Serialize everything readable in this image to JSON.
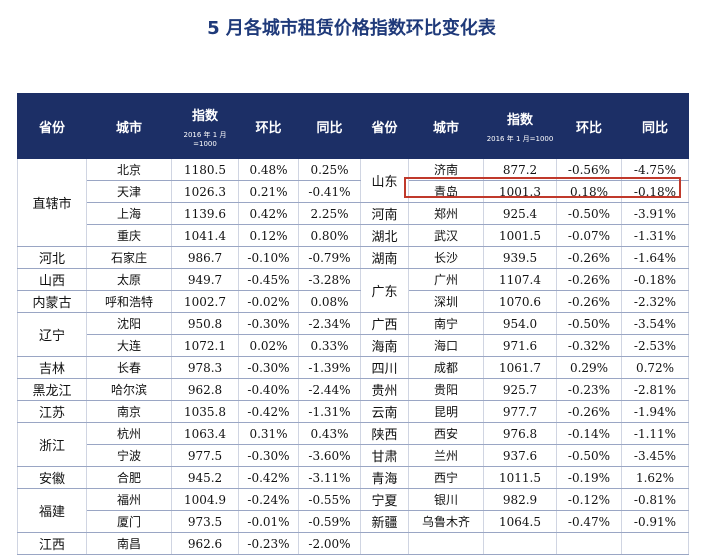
{
  "title": "5 月各城市租赁价格指数环比变化表",
  "headers": {
    "province": "省份",
    "city": "城市",
    "index": "指数",
    "index_note": "2016 年 1 月=1000",
    "mom": "环比",
    "yoy": "同比"
  },
  "left_rows": [
    [
      "北京",
      "1180.5",
      "0.48%",
      "0.25%"
    ],
    [
      "天津",
      "1026.3",
      "0.21%",
      "-0.41%"
    ],
    [
      "上海",
      "1139.6",
      "0.42%",
      "2.25%"
    ],
    [
      "重庆",
      "1041.4",
      "0.12%",
      "0.80%"
    ],
    [
      "石家庄",
      "986.7",
      "-0.10%",
      "-0.79%"
    ],
    [
      "太原",
      "949.7",
      "-0.45%",
      "-3.28%"
    ],
    [
      "呼和浩特",
      "1002.7",
      "-0.02%",
      "0.08%"
    ],
    [
      "沈阳",
      "950.8",
      "-0.30%",
      "-2.34%"
    ],
    [
      "大连",
      "1072.1",
      "0.02%",
      "0.33%"
    ],
    [
      "长春",
      "978.3",
      "-0.30%",
      "-1.39%"
    ],
    [
      "哈尔滨",
      "962.8",
      "-0.40%",
      "-2.44%"
    ],
    [
      "南京",
      "1035.8",
      "-0.42%",
      "-1.31%"
    ],
    [
      "杭州",
      "1063.4",
      "0.31%",
      "0.43%"
    ],
    [
      "宁波",
      "977.5",
      "-0.30%",
      "-3.60%"
    ],
    [
      "合肥",
      "945.2",
      "-0.42%",
      "-3.11%"
    ],
    [
      "福州",
      "1004.9",
      "-0.24%",
      "-0.55%"
    ],
    [
      "厦门",
      "973.5",
      "-0.01%",
      "-0.59%"
    ],
    [
      "南昌",
      "962.6",
      "-0.23%",
      "-2.00%"
    ]
  ],
  "left_provinces": [
    {
      "name": "直辖市",
      "span": 4
    },
    {
      "name": "河北",
      "span": 1
    },
    {
      "name": "山西",
      "span": 1
    },
    {
      "name": "内蒙古",
      "span": 1
    },
    {
      "name": "辽宁",
      "span": 2
    },
    {
      "name": "吉林",
      "span": 1
    },
    {
      "name": "黑龙江",
      "span": 1
    },
    {
      "name": "江苏",
      "span": 1
    },
    {
      "name": "浙江",
      "span": 2
    },
    {
      "name": "安徽",
      "span": 1
    },
    {
      "name": "福建",
      "span": 2
    },
    {
      "name": "江西",
      "span": 1
    }
  ],
  "right_rows": [
    [
      "济南",
      "877.2",
      "-0.56%",
      "-4.75%"
    ],
    [
      "青岛",
      "1001.3",
      "0.18%",
      "-0.18%"
    ],
    [
      "郑州",
      "925.4",
      "-0.50%",
      "-3.91%"
    ],
    [
      "武汉",
      "1001.5",
      "-0.07%",
      "-1.31%"
    ],
    [
      "长沙",
      "939.5",
      "-0.26%",
      "-1.64%"
    ],
    [
      "广州",
      "1107.4",
      "-0.26%",
      "-0.18%"
    ],
    [
      "深圳",
      "1070.6",
      "-0.26%",
      "-2.32%"
    ],
    [
      "南宁",
      "954.0",
      "-0.50%",
      "-3.54%"
    ],
    [
      "海口",
      "971.6",
      "-0.32%",
      "-2.53%"
    ],
    [
      "成都",
      "1061.7",
      "0.29%",
      "0.72%"
    ],
    [
      "贵阳",
      "925.7",
      "-0.23%",
      "-2.81%"
    ],
    [
      "昆明",
      "977.7",
      "-0.26%",
      "-1.94%"
    ],
    [
      "西安",
      "976.8",
      "-0.14%",
      "-1.11%"
    ],
    [
      "兰州",
      "937.6",
      "-0.50%",
      "-3.45%"
    ],
    [
      "西宁",
      "1011.5",
      "-0.19%",
      "1.62%"
    ],
    [
      "银川",
      "982.9",
      "-0.12%",
      "-0.81%"
    ],
    [
      "乌鲁木齐",
      "1064.5",
      "-0.47%",
      "-0.91%"
    ],
    [
      "",
      "",
      "",
      ""
    ]
  ],
  "right_provinces": [
    {
      "name": "山东",
      "span": 2
    },
    {
      "name": "河南",
      "span": 1
    },
    {
      "name": "湖北",
      "span": 1
    },
    {
      "name": "湖南",
      "span": 1
    },
    {
      "name": "广东",
      "span": 2
    },
    {
      "name": "广西",
      "span": 1
    },
    {
      "name": "海南",
      "span": 1
    },
    {
      "name": "四川",
      "span": 1
    },
    {
      "name": "贵州",
      "span": 1
    },
    {
      "name": "云南",
      "span": 1
    },
    {
      "name": "陕西",
      "span": 1
    },
    {
      "name": "甘肃",
      "span": 1
    },
    {
      "name": "青海",
      "span": 1
    },
    {
      "name": "宁夏",
      "span": 1
    },
    {
      "name": "新疆",
      "span": 1
    },
    {
      "name": "",
      "span": 1
    }
  ],
  "highlighted_city": "青岛",
  "colors": {
    "header_bg": "#1c2f66",
    "title": "#1f3a7a",
    "highlight": "#c0392b"
  }
}
